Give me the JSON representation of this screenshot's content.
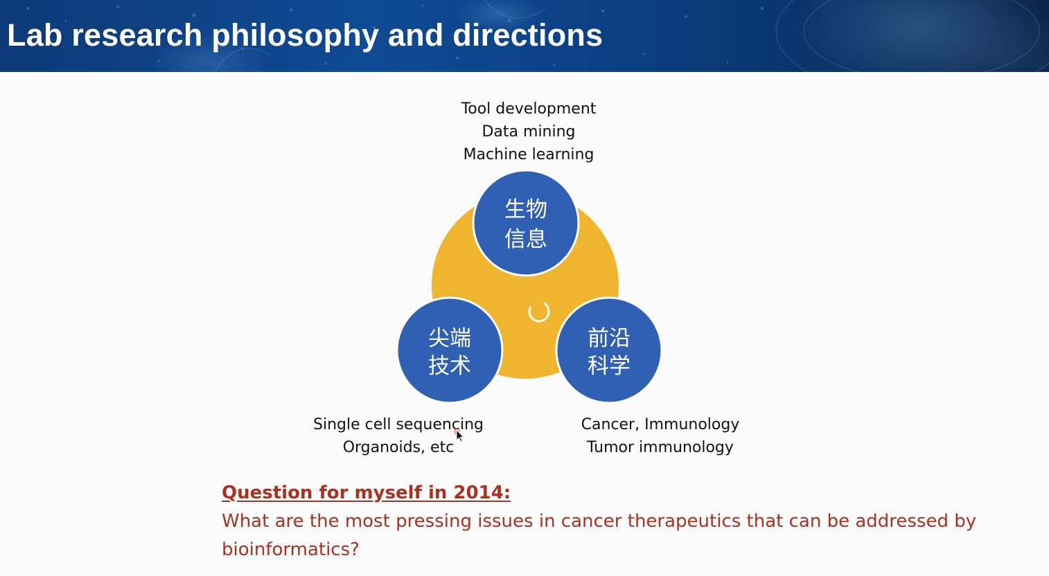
{
  "slide": {
    "title": "Lab research philosophy and directions"
  },
  "diagram": {
    "center_color": "#F0B52E",
    "circle_color": "#3060B4",
    "circles": [
      {
        "id": "bioinformatics",
        "line1": "生物",
        "line2": "信息",
        "caption": [
          "Tool development",
          "Data mining",
          "Machine learning"
        ]
      },
      {
        "id": "technology",
        "line1": "尖端",
        "line2": "技术",
        "caption": [
          "Single cell sequencing",
          "Organoids, etc"
        ]
      },
      {
        "id": "science",
        "line1": "前沿",
        "line2": "科学",
        "caption": [
          "Cancer, Immunology",
          "Tumor immunology"
        ]
      }
    ]
  },
  "question": {
    "heading": "Question for myself in 2014:",
    "body": "What are the most pressing issues in cancer therapeutics that can be addressed by bioinformatics?",
    "color": "#A8321F"
  }
}
